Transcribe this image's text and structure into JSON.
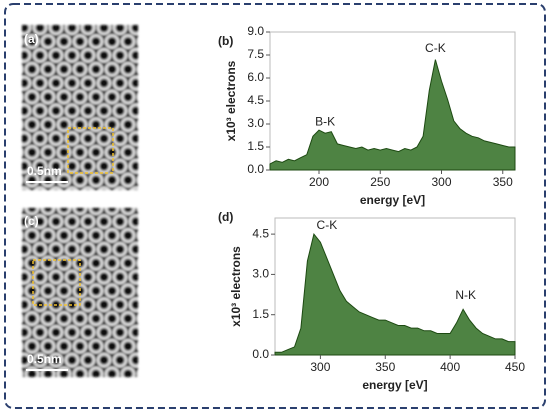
{
  "images": [
    {
      "label": "(a)",
      "scale_bar": "0.5nm"
    },
    {
      "label": "(c)",
      "scale_bar": "0.5nm"
    }
  ],
  "chart_data": [
    {
      "type": "area",
      "label": "(b)",
      "x_label": "energy [eV]",
      "y_label": "x10³ electrons",
      "color": "#2f6d22",
      "annotations": [
        {
          "text": "B-K",
          "x": 205,
          "y": 3.1
        },
        {
          "text": "C-K",
          "x": 295,
          "y": 7.9
        }
      ],
      "x": [
        160,
        165,
        170,
        175,
        180,
        185,
        190,
        195,
        200,
        205,
        210,
        215,
        220,
        225,
        230,
        235,
        240,
        245,
        250,
        255,
        260,
        265,
        270,
        275,
        280,
        285,
        290,
        295,
        300,
        305,
        310,
        315,
        320,
        325,
        330,
        335,
        340,
        345,
        350,
        355,
        360
      ],
      "values": [
        0.4,
        0.6,
        0.5,
        0.7,
        0.6,
        0.8,
        1.0,
        2.2,
        2.6,
        2.4,
        2.5,
        1.7,
        1.6,
        1.5,
        1.4,
        1.5,
        1.3,
        1.4,
        1.3,
        1.4,
        1.3,
        1.2,
        1.4,
        1.3,
        1.5,
        2.2,
        5.2,
        7.2,
        5.8,
        4.6,
        3.2,
        2.7,
        2.4,
        2.2,
        2.1,
        1.9,
        1.8,
        1.7,
        1.6,
        1.5,
        1.5
      ],
      "xlim": [
        160,
        360
      ],
      "xticks": [
        200,
        250,
        300,
        350
      ],
      "ylim": [
        0,
        9
      ],
      "yticks": [
        {
          "value": 0,
          "label": "0.0"
        },
        {
          "value": 1.5,
          "label": "1.5"
        },
        {
          "value": 3,
          "label": "3.0"
        },
        {
          "value": 4.5,
          "label": "4.5"
        },
        {
          "value": 6,
          "label": "6.0"
        },
        {
          "value": 7.5,
          "label": "7.5"
        },
        {
          "value": 9,
          "label": "9.0"
        }
      ]
    },
    {
      "type": "area",
      "label": "(d)",
      "x_label": "energy [eV]",
      "y_label": "x10³ electrons",
      "color": "#2f6d22",
      "annotations": [
        {
          "text": "C-K",
          "x": 305,
          "y": 4.8
        },
        {
          "text": "N-K",
          "x": 412,
          "y": 2.2
        }
      ],
      "x": [
        265,
        270,
        275,
        280,
        285,
        290,
        295,
        300,
        305,
        310,
        315,
        320,
        325,
        330,
        335,
        340,
        345,
        350,
        355,
        360,
        365,
        370,
        375,
        380,
        385,
        390,
        395,
        400,
        405,
        410,
        415,
        420,
        425,
        430,
        435,
        440,
        445,
        450
      ],
      "values": [
        0.1,
        0.1,
        0.2,
        0.3,
        1.0,
        3.5,
        4.5,
        4.2,
        3.6,
        3.0,
        2.4,
        2.0,
        1.8,
        1.6,
        1.5,
        1.4,
        1.3,
        1.3,
        1.2,
        1.1,
        1.1,
        1.0,
        1.0,
        0.9,
        0.9,
        0.8,
        0.8,
        0.8,
        1.2,
        1.7,
        1.3,
        1.0,
        0.8,
        0.7,
        0.6,
        0.6,
        0.5,
        0.5
      ],
      "xlim": [
        265,
        450
      ],
      "xticks": [
        300,
        350,
        400,
        450
      ],
      "ylim": [
        0,
        5.1
      ],
      "yticks": [
        {
          "value": 0,
          "label": "0.0"
        },
        {
          "value": 1.5,
          "label": "1.5"
        },
        {
          "value": 3,
          "label": "3.0"
        },
        {
          "value": 4.5,
          "label": "4.5"
        }
      ]
    }
  ]
}
